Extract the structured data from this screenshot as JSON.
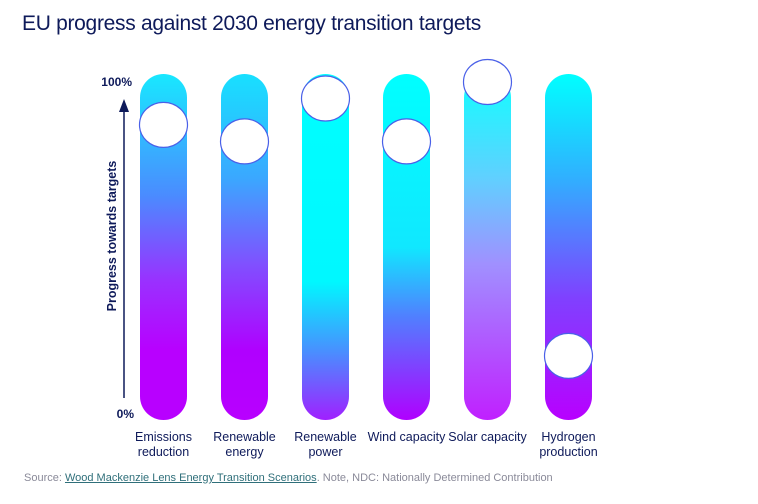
{
  "title": "EU progress against 2030 energy transition targets",
  "chart_data": {
    "type": "bar",
    "title": "EU progress against 2030 energy transition targets",
    "ylabel": "Progress towards targets",
    "ylim": [
      0,
      100
    ],
    "y_tick_labels": [
      "0%",
      "100%"
    ],
    "grid": false,
    "categories": [
      [
        "Emissions",
        "reduction"
      ],
      [
        "Renewable",
        "energy"
      ],
      [
        "Renewable",
        "power"
      ],
      [
        "Wind capacity"
      ],
      [
        "Solar capacity"
      ],
      [
        "Hydrogen",
        "production"
      ]
    ],
    "values": [
      87,
      82,
      95,
      82,
      100,
      17
    ],
    "gradients": [
      [
        [
          "0",
          "#18e8ff"
        ],
        [
          "0.35",
          "#4a8cff"
        ],
        [
          "0.6",
          "#9a30ff"
        ],
        [
          "0.8",
          "#b800ff"
        ],
        [
          "1",
          "#b800ff"
        ]
      ],
      [
        [
          "0",
          "#18e0ff"
        ],
        [
          "0.3",
          "#3aa8ff"
        ],
        [
          "0.55",
          "#8050ff"
        ],
        [
          "0.8",
          "#b000ff"
        ],
        [
          "1",
          "#b800ff"
        ]
      ],
      [
        [
          "0",
          "#00ffff"
        ],
        [
          "0.6",
          "#00f8ff"
        ],
        [
          "0.8",
          "#4890ff"
        ],
        [
          "1",
          "#a020ff"
        ]
      ],
      [
        [
          "0",
          "#00ffff"
        ],
        [
          "0.5",
          "#10e8ff"
        ],
        [
          "0.7",
          "#5080ff"
        ],
        [
          "1",
          "#b000ff"
        ]
      ],
      [
        [
          "0",
          "#10ffff"
        ],
        [
          "0.3",
          "#60d0ff"
        ],
        [
          "0.55",
          "#a090ff"
        ],
        [
          "1",
          "#c020ff"
        ]
      ],
      [
        [
          "0",
          "#00ffff"
        ],
        [
          "0.3",
          "#30b0ff"
        ],
        [
          "0.65",
          "#8040ff"
        ],
        [
          "1",
          "#b800ff"
        ]
      ]
    ],
    "marker_color": "#ffffff",
    "marker_stroke": "#4a60e8"
  },
  "source": {
    "prefix": "Source: ",
    "link": "Wood Mackenzie Lens Energy Transition Scenarios",
    "suffix": ". Note, NDC: Nationally Determined Contribution"
  }
}
